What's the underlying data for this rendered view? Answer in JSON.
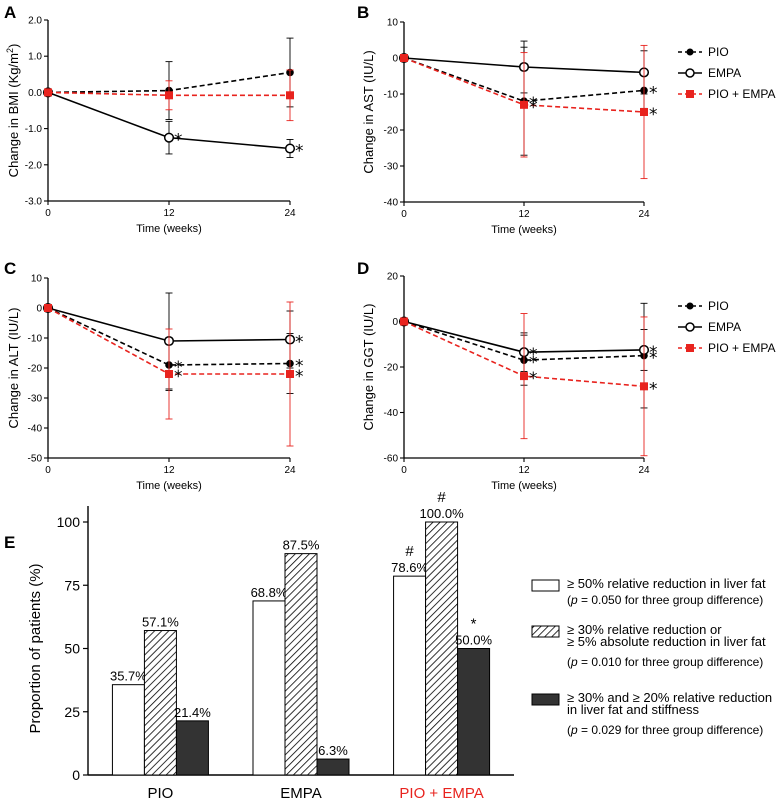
{
  "colors": {
    "pio": "#000000",
    "empa": "#000000",
    "combo": "#e8231e",
    "bar_solid": "#333333"
  },
  "legend_top": [
    {
      "label": "PIO",
      "marker": "filled-circle",
      "dash": true,
      "color": "#000000"
    },
    {
      "label": "EMPA",
      "marker": "open-circle",
      "dash": false,
      "color": "#000000"
    },
    {
      "label": "PIO + EMPA",
      "marker": "filled-square",
      "dash": true,
      "color": "#e8231e"
    }
  ],
  "chart_data": [
    {
      "panel": "A",
      "type": "line",
      "ylabel": "Change in BMI (Kg/m²)",
      "ylabel_pre": "Change in BMI (Kg/m",
      "ylabel_sup": "2",
      "ylabel_post": ")",
      "xlabel": "Time (weeks)",
      "x": [
        0,
        12,
        24
      ],
      "xticks": [
        "0",
        "12",
        "24"
      ],
      "ylim": [
        -3.0,
        2.0
      ],
      "yticks": [
        2.0,
        1.0,
        0.0,
        -1.0,
        -2.0,
        -3.0
      ],
      "yticklabels": [
        "2.0",
        "1.0",
        "0.0",
        "-1.0",
        "-2.0",
        "-3.0"
      ],
      "series": [
        {
          "name": "PIO",
          "values": [
            0,
            0.05,
            0.55
          ],
          "err": [
            0,
            0.8,
            0.95
          ],
          "sig": [
            false,
            false,
            false
          ]
        },
        {
          "name": "EMPA",
          "values": [
            0,
            -1.25,
            -1.55
          ],
          "err": [
            0,
            0.45,
            0.25
          ],
          "sig": [
            false,
            true,
            true
          ]
        },
        {
          "name": "PIO + EMPA",
          "values": [
            0,
            -0.08,
            -0.08
          ],
          "err": [
            0,
            0.4,
            0.7
          ],
          "sig": [
            false,
            false,
            false
          ]
        }
      ]
    },
    {
      "panel": "B",
      "type": "line",
      "ylabel": "Change in AST (IU/L)",
      "xlabel": "Time (weeks)",
      "x": [
        0,
        12,
        24
      ],
      "xticks": [
        "0",
        "12",
        "24"
      ],
      "ylim": [
        -40,
        10
      ],
      "yticks": [
        10,
        0,
        -10,
        -20,
        -30,
        -40
      ],
      "yticklabels": [
        "10",
        "0",
        "-10",
        "-20",
        "-30",
        "-40"
      ],
      "series": [
        {
          "name": "PIO",
          "values": [
            0,
            -12,
            -9
          ],
          "err": [
            0,
            15,
            5
          ],
          "sig": [
            false,
            true,
            true
          ]
        },
        {
          "name": "EMPA",
          "values": [
            0,
            -2.5,
            -4
          ],
          "err": [
            0,
            7.2,
            6
          ],
          "sig": [
            false,
            false,
            false
          ]
        },
        {
          "name": "PIO + EMPA",
          "values": [
            0,
            -13,
            -15
          ],
          "err": [
            0,
            14.5,
            18.5
          ],
          "sig": [
            false,
            true,
            true
          ]
        }
      ]
    },
    {
      "panel": "C",
      "type": "line",
      "ylabel": "Change in ALT (IU/L)",
      "xlabel": "Time (weeks)",
      "x": [
        0,
        12,
        24
      ],
      "xticks": [
        "0",
        "12",
        "24"
      ],
      "ylim": [
        -50,
        10
      ],
      "yticks": [
        10,
        0,
        -10,
        -20,
        -30,
        -40,
        -50
      ],
      "yticklabels": [
        "10",
        "0",
        "-10",
        "-20",
        "-30",
        "-40",
        "-50"
      ],
      "series": [
        {
          "name": "PIO",
          "values": [
            0,
            -19,
            -18.5
          ],
          "err": [
            0,
            8.5,
            10
          ],
          "sig": [
            false,
            true,
            true
          ]
        },
        {
          "name": "EMPA",
          "values": [
            0,
            -11,
            -10.5
          ],
          "err": [
            0,
            16,
            9.5
          ],
          "sig": [
            false,
            false,
            true
          ]
        },
        {
          "name": "PIO + EMPA",
          "values": [
            0,
            -22,
            -22
          ],
          "err": [
            0,
            15,
            24
          ],
          "sig": [
            false,
            true,
            true
          ]
        }
      ]
    },
    {
      "panel": "D",
      "type": "line",
      "ylabel": "Change in GGT (IU/L)",
      "xlabel": "Time (weeks)",
      "x": [
        0,
        12,
        24
      ],
      "xticks": [
        "0",
        "12",
        "24"
      ],
      "ylim": [
        -60,
        20
      ],
      "yticks": [
        20,
        0,
        -20,
        -40,
        -60
      ],
      "yticklabels": [
        "20",
        "0",
        "-20",
        "-40",
        "-60"
      ],
      "series": [
        {
          "name": "PIO",
          "values": [
            0,
            -17,
            -15
          ],
          "err": [
            0,
            11,
            23
          ],
          "sig": [
            false,
            true,
            true
          ]
        },
        {
          "name": "EMPA",
          "values": [
            0,
            -13.5,
            -12.5
          ],
          "err": [
            0,
            8.5,
            9
          ],
          "sig": [
            false,
            true,
            true
          ]
        },
        {
          "name": "PIO + EMPA",
          "values": [
            0,
            -24,
            -28.5
          ],
          "err": [
            0,
            27.5,
            30.5
          ],
          "sig": [
            false,
            true,
            true
          ]
        }
      ]
    },
    {
      "panel": "E",
      "type": "bar",
      "ylabel": "Proportion of patients (%)",
      "ylim": [
        0,
        100
      ],
      "yticks": [
        0,
        25,
        50,
        75,
        100
      ],
      "yticklabels": [
        "0",
        "25",
        "50",
        "75",
        "100"
      ],
      "categories": [
        "PIO",
        "EMPA",
        "PIO + EMPA"
      ],
      "category_colors": [
        "#000000",
        "#000000",
        "#e8231e"
      ],
      "series": [
        {
          "style": "open",
          "values": [
            35.7,
            68.8,
            78.6
          ],
          "labels": [
            "35.7%",
            "68.8%",
            "78.6%"
          ],
          "marks": [
            "",
            "",
            "#"
          ]
        },
        {
          "style": "hatched",
          "values": [
            57.1,
            87.5,
            100.0
          ],
          "labels": [
            "57.1%",
            "87.5%",
            "100.0%"
          ],
          "marks": [
            "",
            "",
            "#"
          ]
        },
        {
          "style": "solid",
          "values": [
            21.4,
            6.3,
            50.0
          ],
          "labels": [
            "21.4%",
            "6.3%",
            "50.0%"
          ],
          "marks": [
            "",
            "",
            "*"
          ]
        }
      ],
      "legend": [
        {
          "style": "open",
          "line1": "≥ 50% relative reduction in liver fat",
          "p_line": "= 0.050 for three group difference)"
        },
        {
          "style": "hatched",
          "line1": "≥ 30% relative reduction or",
          "line2": "≥ 5% absolute reduction in liver fat",
          "p_line": "= 0.010 for three group difference)"
        },
        {
          "style": "solid",
          "line1": "≥ 30% and ≥ 20% relative reduction",
          "line2": "in liver fat and stiffness",
          "p_line": "= 0.029 for three group difference)"
        }
      ],
      "p_symbol": "p",
      "p_prefix": "("
    }
  ]
}
